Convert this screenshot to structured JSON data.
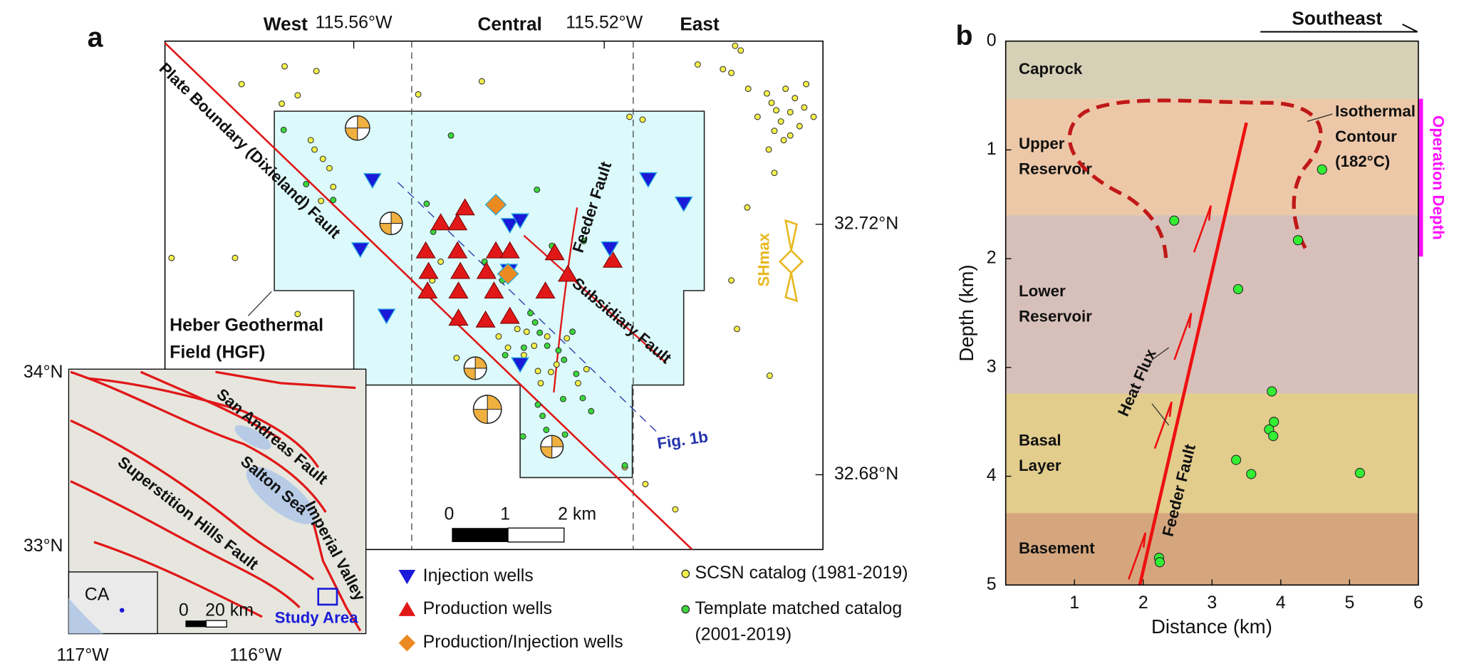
{
  "panel_a": {
    "label": "a",
    "regions": [
      "West",
      "Central",
      "East"
    ],
    "lon_ticks": [
      "115.56°W",
      "115.52°W"
    ],
    "lat_ticks": [
      "32.72°N",
      "32.68°N"
    ],
    "plate_fault": "Plate Boundary (Dixieland) Fault",
    "field_label": [
      "Heber Geothermal",
      "Field (HGF)"
    ],
    "feeder_fault": "Feeder Fault",
    "subsidiary_fault": "Subsidiary Fault",
    "shmax": "SHmax",
    "profile": "Fig. 1b",
    "scale_bar": [
      "0",
      "1",
      "2 km"
    ],
    "legend": [
      {
        "label": "Injection wells",
        "color": "#1a1ad8"
      },
      {
        "label": "Production wells",
        "color": "#e01818"
      },
      {
        "label": "Production/Injection wells",
        "color": "#ec8a22"
      },
      {
        "label": [
          "SCSN catalog (1981-2019)"
        ],
        "color": "#f4f04a"
      },
      {
        "label": [
          "Template matched catalog",
          "(2001-2019)"
        ],
        "color": "#3ad83a"
      }
    ],
    "inset": {
      "lat_ticks": [
        "34°N",
        "33°N"
      ],
      "lon_ticks": [
        "117°W",
        "116°W"
      ],
      "san_andreas": "San Andreas Fault",
      "salton_sea": "Salton Sea",
      "superstition": "Superstition Hills Fault",
      "imperial": "Imperial Valley",
      "state": "CA",
      "scale_bar": [
        "0",
        "20 km"
      ],
      "study_area": "Study Area"
    }
  },
  "chart_data": {
    "type": "scatter",
    "label": "b",
    "x_label": "Distance (km)",
    "y_label": "Depth (km)",
    "xlim": [
      0,
      6
    ],
    "xticks": [
      1,
      2,
      3,
      4,
      5,
      6
    ],
    "ylim": [
      0,
      5
    ],
    "yticks": [
      0,
      1,
      2,
      3,
      4,
      5
    ],
    "y_inverted": true,
    "color": "#33ee33",
    "x": [
      2.45,
      4.6,
      4.25,
      3.38,
      3.87,
      3.9,
      3.83,
      3.89,
      3.35,
      3.57,
      5.15,
      2.23,
      2.24
    ],
    "values": [
      1.65,
      1.18,
      1.83,
      2.28,
      3.22,
      3.5,
      3.57,
      3.63,
      3.85,
      3.98,
      3.97,
      4.75,
      4.79
    ],
    "layers": [
      {
        "name": [
          "Caprock"
        ],
        "top": 0,
        "bottom": 0.53,
        "color": "#d5d0b6"
      },
      {
        "name": [
          "Upper",
          "Reservoir"
        ],
        "top": 0.53,
        "bottom": 1.6,
        "color": "#edc8a8"
      },
      {
        "name": [
          "Lower",
          "Reservoir"
        ],
        "top": 1.6,
        "bottom": 3.24,
        "color": "#d8c0ba"
      },
      {
        "name": [
          "Basal",
          "Layer"
        ],
        "top": 3.24,
        "bottom": 4.34,
        "color": "#e3cd8d"
      },
      {
        "name": [
          "Basement"
        ],
        "top": 4.34,
        "bottom": 5,
        "color": "#d5a67e"
      }
    ],
    "operation_depth": {
      "label": "Operation Depth",
      "range": [
        0.53,
        1.98
      ],
      "color": "#ff10ff"
    },
    "fault": {
      "label": "Feeder Fault",
      "x": [
        1.95,
        3.5
      ],
      "y": [
        5,
        0.75
      ],
      "color": "#ee1111"
    },
    "isotherm": [
      "Isothermal",
      "Contour",
      "(182°C)"
    ],
    "heat_flux": "Heat Flux",
    "direction": "Southeast"
  }
}
